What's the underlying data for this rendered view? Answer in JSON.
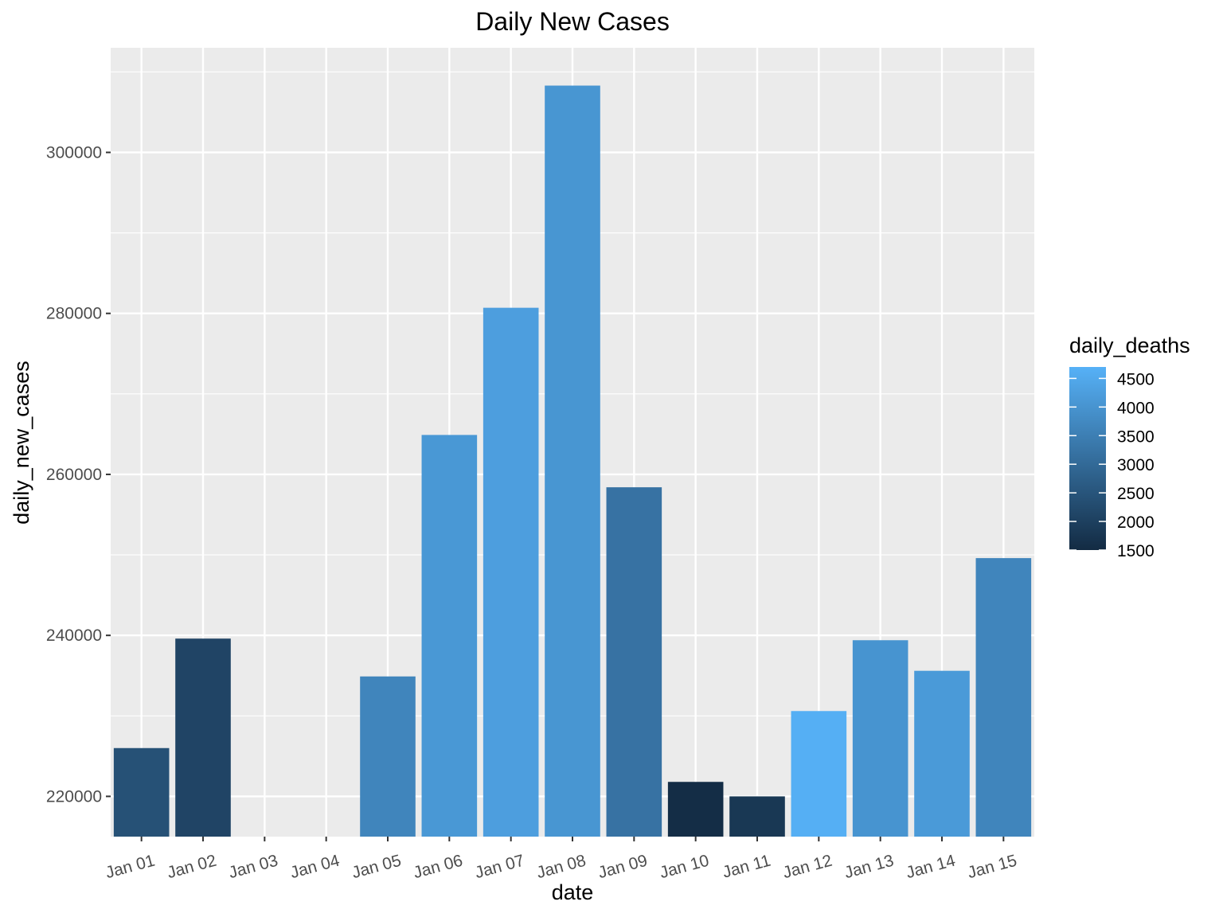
{
  "chart_data": {
    "type": "bar",
    "title": "Daily New Cases",
    "xlabel": "date",
    "ylabel": "daily_new_cases",
    "categories": [
      "Jan 01",
      "Jan 02",
      "Jan 03",
      "Jan 04",
      "Jan 05",
      "Jan 06",
      "Jan 07",
      "Jan 08",
      "Jan 09",
      "Jan 10",
      "Jan 11",
      "Jan 12",
      "Jan 13",
      "Jan 14",
      "Jan 15"
    ],
    "values": [
      226000,
      239600,
      215000,
      212000,
      234900,
      264900,
      280700,
      308300,
      258400,
      221800,
      220000,
      230600,
      239400,
      235600,
      249600
    ],
    "fill_values": [
      2400,
      2100,
      null,
      null,
      3650,
      4100,
      4250,
      4050,
      3200,
      1550,
      1800,
      4650,
      4000,
      4150,
      3650
    ],
    "fill_name": "daily_deaths",
    "ylim": [
      215000,
      313000
    ],
    "yticks": [
      220000,
      240000,
      260000,
      280000,
      300000
    ],
    "yticks_labels": [
      "220000",
      "240000",
      "260000",
      "280000",
      "300000"
    ],
    "xtick_rotation_deg": -15,
    "grid": true,
    "panel_background": "#ebebeb",
    "grid_color": "#ffffff",
    "legend": {
      "title": "daily_deaths",
      "placement": "right",
      "type": "colorbar",
      "range": [
        1500,
        4700
      ],
      "ticks": [
        1500,
        2000,
        2500,
        3000,
        3500,
        4000,
        4500
      ],
      "tick_labels": [
        "1500",
        "2000",
        "2500",
        "3000",
        "3500",
        "4000",
        "4500"
      ],
      "low_color": "#132b43",
      "high_color": "#56b1f7"
    }
  }
}
